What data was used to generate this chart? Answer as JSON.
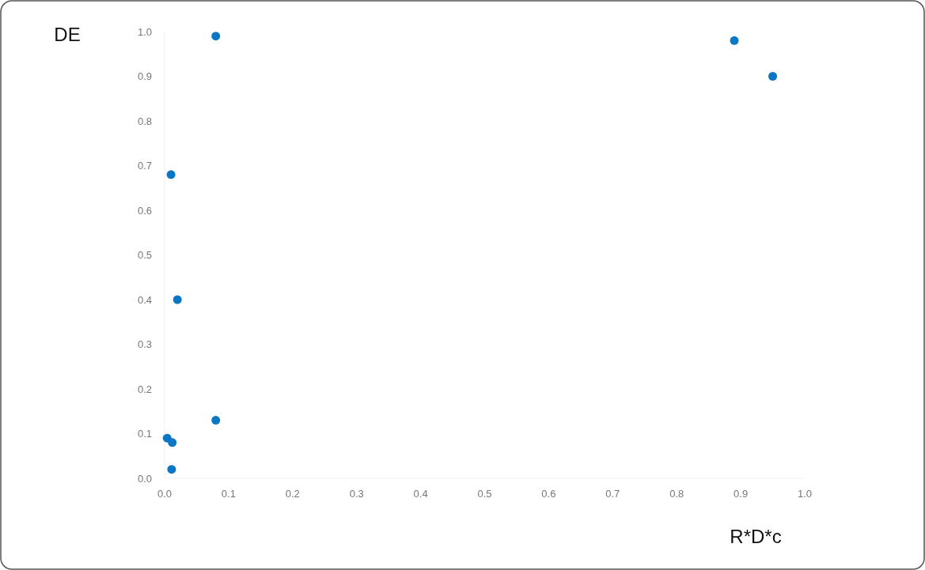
{
  "chart_data": {
    "type": "scatter",
    "xlabel": "R*D*c",
    "ylabel": "DE",
    "x": [
      0.08,
      0.89,
      0.95,
      0.01,
      0.02,
      0.08,
      0.004,
      0.012,
      0.011
    ],
    "series": [
      {
        "color": "#0b76c4",
        "values": [
          0.99,
          0.98,
          0.9,
          0.68,
          0.4,
          0.13,
          0.09,
          0.08,
          0.02
        ]
      }
    ],
    "xlim": [
      0,
      1
    ],
    "ylim": [
      0,
      1
    ],
    "xticks": [
      {
        "value": 0,
        "label": "0.0"
      },
      {
        "value": 0.1,
        "label": "0.1"
      },
      {
        "value": 0.2,
        "label": "0.2"
      },
      {
        "value": 0.3,
        "label": "0.3"
      },
      {
        "value": 0.4,
        "label": "0.4"
      },
      {
        "value": 0.5,
        "label": "0.5"
      },
      {
        "value": 0.6,
        "label": "0.6"
      },
      {
        "value": 0.7,
        "label": "0.7"
      },
      {
        "value": 0.8,
        "label": "0.8"
      },
      {
        "value": 0.9,
        "label": "0.9"
      },
      {
        "value": 1,
        "label": "1.0"
      }
    ],
    "yticks": [
      {
        "value": 0,
        "label": "0.0"
      },
      {
        "value": 0.1,
        "label": "0.1"
      },
      {
        "value": 0.2,
        "label": "0.2"
      },
      {
        "value": 0.3,
        "label": "0.3"
      },
      {
        "value": 0.4,
        "label": "0.4"
      },
      {
        "value": 0.5,
        "label": "0.5"
      },
      {
        "value": 0.6,
        "label": "0.6"
      },
      {
        "value": 0.7,
        "label": "0.7"
      },
      {
        "value": 0.8,
        "label": "0.8"
      },
      {
        "value": 0.9,
        "label": "0.9"
      },
      {
        "value": 1,
        "label": "1.0"
      }
    ],
    "marker": "circle",
    "grid": false
  }
}
